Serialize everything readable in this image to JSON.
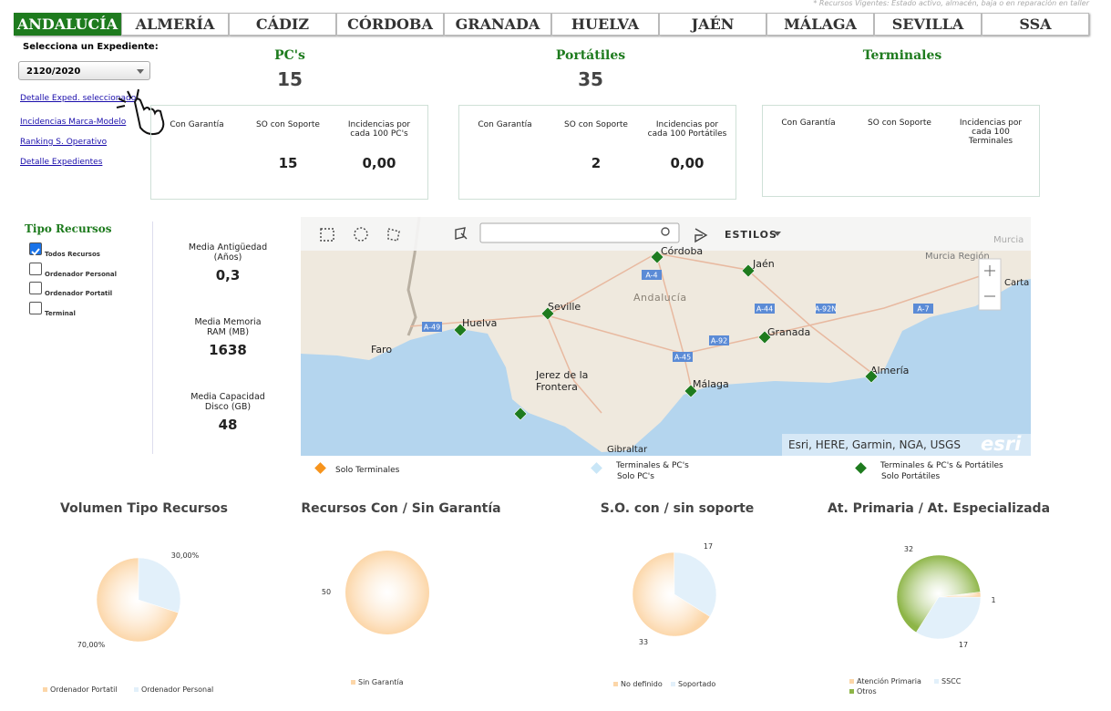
{
  "note": "* Recursos Vigentes: Estado activo, almacén, baja o en reparación en taller",
  "tabs": [
    "ANDALUCÍA",
    "ALMERÍA",
    "CÁDIZ",
    "CÓRDOBA",
    "GRANADA",
    "HUELVA",
    "JAÉN",
    "MÁLAGA",
    "SEVILLA",
    "SSA"
  ],
  "expediente": {
    "label": "Selecciona un Expediente:",
    "selected": "2120/2020"
  },
  "links": [
    "Detalle Exped. seleccionado",
    "Incidencias Marca-Modelo",
    "Ranking S. Operativo",
    "Detalle Expedientes"
  ],
  "kpis": [
    {
      "title": "PC's",
      "total": 15,
      "items": [
        {
          "label": "Con Garantía"
        },
        {
          "label": "SO con Soporte",
          "value": 15
        },
        {
          "label": "Incidencias por cada 100 PC's",
          "value": "0,00"
        }
      ]
    },
    {
      "title": "Portátiles",
      "total": 35,
      "items": [
        {
          "label": "Con Garantía"
        },
        {
          "label": "SO con Soporte",
          "value": 2
        },
        {
          "label": "Incidencias por cada 100 Portátiles",
          "value": "0,00"
        }
      ]
    },
    {
      "title": "Terminales",
      "items": [
        {
          "label": "Con Garantía"
        },
        {
          "label": "SO con Soporte"
        },
        {
          "label": "Incidencias por cada 100 Terminales"
        }
      ]
    }
  ],
  "tipo_recursos": {
    "title": "Tipo Recursos",
    "options": [
      {
        "label": "Todos Recursos",
        "checked": true
      },
      {
        "label": "Ordenador Personal",
        "checked": false
      },
      {
        "label": "Ordenador Portatil",
        "checked": false
      },
      {
        "label": "Terminal",
        "checked": false
      }
    ]
  },
  "stats": [
    {
      "label": "Media Antigüedad (Años)",
      "value": "0,3"
    },
    {
      "label": "Media Memoria RAM (MB)",
      "value": 1638
    },
    {
      "label": "Media Capacidad Disco (GB)",
      "value": 48
    }
  ],
  "map": {
    "styles_button": "ESTILOS",
    "attribution": "Esri, HERE, Garmin, NGA, USGS",
    "logo": "esri",
    "labels": [
      "Córdoba",
      "Jaén",
      "Murcia Región",
      "Murcia",
      "Andalucía",
      "Seville",
      "Huelva",
      "Faro",
      "Granada",
      "Jerez de la",
      "Frontera",
      "Málaga",
      "Almería",
      "Carta",
      "Gibraltar"
    ],
    "roads": [
      "A-4",
      "A-44",
      "A-92N",
      "A-7",
      "A-49",
      "A-45",
      "A-92"
    ],
    "legend": [
      {
        "lines": [
          "Solo Terminales"
        ],
        "color": "#f7941d"
      },
      {
        "lines": [
          "Terminales & PC's",
          "Solo PC's"
        ],
        "color": "#c9e6f7"
      },
      {
        "lines": [
          "Terminales & PC's & Portátiles",
          "Solo Portátiles"
        ],
        "color": "#1e7b1e"
      }
    ]
  },
  "pies": [
    {
      "title": "Volumen Tipo Recursos",
      "categories": [
        "Ordenador Portatil",
        "Ordenador Personal"
      ],
      "values": [
        70,
        30
      ],
      "value_labels": [
        "70,00%",
        "30,00%"
      ],
      "colors": [
        "#fcd6a8",
        "#e2f0fa"
      ]
    },
    {
      "title": "Recursos Con / Sin Garantía",
      "categories": [
        "Sin Garantía"
      ],
      "values": [
        50
      ],
      "colors": [
        "#fcd6a8"
      ]
    },
    {
      "title": "S.O. con / sin soporte",
      "categories": [
        "No definido",
        "Soportado"
      ],
      "values": [
        33,
        17
      ],
      "colors": [
        "#fcd6a8",
        "#e2f0fa"
      ]
    },
    {
      "title": "At. Primaria / At. Especializada",
      "categories": [
        "Atención Primaria",
        "SSCC",
        "Otros"
      ],
      "values": [
        1,
        17,
        32
      ],
      "colors": [
        "#fcd6a8",
        "#e2f0fa",
        "#8db547"
      ]
    }
  ]
}
